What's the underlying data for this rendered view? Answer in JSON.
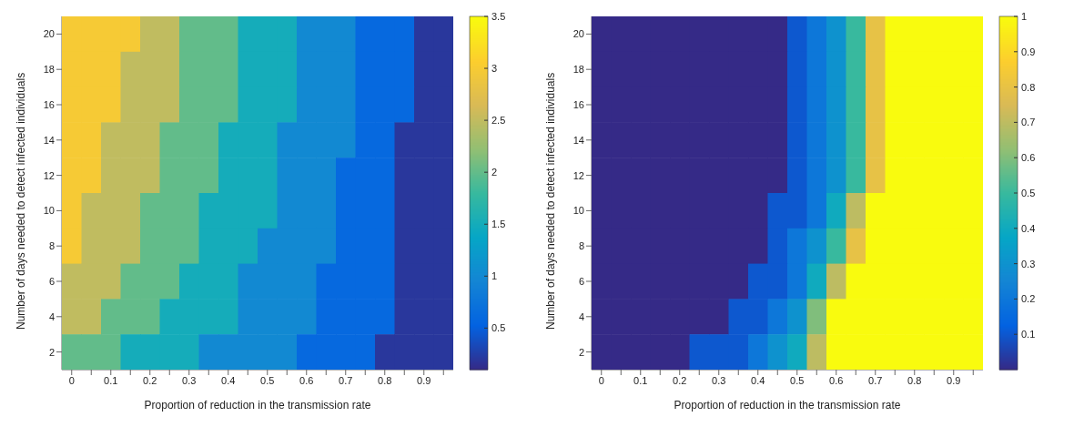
{
  "chart_data": [
    {
      "type": "heatmap",
      "xlabel": "Proportion of reduction in the transmission rate",
      "ylabel": "Number of days needed to detect infected individuals",
      "categories": [
        "0",
        null,
        "0.1",
        null,
        "0.2",
        null,
        "0.3",
        null,
        "0.4",
        null,
        "0.5",
        null,
        "0.6",
        null,
        "0.7",
        null,
        "0.8",
        null,
        "0.9",
        null
      ],
      "y_categories": [
        "20",
        "18",
        "16",
        "14",
        "12",
        "10",
        "8",
        "6",
        "4",
        "2"
      ],
      "clim": [
        0.1,
        3.5
      ],
      "cticks": [
        0.5,
        1,
        1.5,
        2,
        2.5,
        3,
        3.5
      ],
      "cells": [
        [
          3,
          3,
          3,
          3,
          2.5,
          2.5,
          2,
          2,
          2,
          1.5,
          1.5,
          1.5,
          1,
          1,
          1,
          0.6,
          0.6,
          0.6,
          0.2,
          0.2
        ],
        [
          3,
          3,
          3,
          2.5,
          2.5,
          2.5,
          2,
          2,
          2,
          1.5,
          1.5,
          1.5,
          1,
          1,
          1,
          0.6,
          0.6,
          0.6,
          0.2,
          0.2
        ],
        [
          3,
          3,
          3,
          2.5,
          2.5,
          2.5,
          2,
          2,
          2,
          1.5,
          1.5,
          1.5,
          1,
          1,
          1,
          0.6,
          0.6,
          0.6,
          0.2,
          0.2
        ],
        [
          3,
          3,
          2.5,
          2.5,
          2.5,
          2,
          2,
          2,
          1.5,
          1.5,
          1.5,
          1,
          1,
          1,
          1,
          0.6,
          0.6,
          0.2,
          0.2,
          0.2
        ],
        [
          3,
          3,
          2.5,
          2.5,
          2.5,
          2,
          2,
          2,
          1.5,
          1.5,
          1.5,
          1,
          1,
          1,
          0.6,
          0.6,
          0.6,
          0.2,
          0.2,
          0.2
        ],
        [
          3,
          2.5,
          2.5,
          2.5,
          2,
          2,
          2,
          1.5,
          1.5,
          1.5,
          1.5,
          1,
          1,
          1,
          0.6,
          0.6,
          0.6,
          0.2,
          0.2,
          0.2
        ],
        [
          3,
          2.5,
          2.5,
          2.5,
          2,
          2,
          2,
          1.5,
          1.5,
          1.5,
          1,
          1,
          1,
          1,
          0.6,
          0.6,
          0.6,
          0.2,
          0.2,
          0.2
        ],
        [
          2.5,
          2.5,
          2.5,
          2,
          2,
          2,
          1.5,
          1.5,
          1.5,
          1,
          1,
          1,
          1,
          0.6,
          0.6,
          0.6,
          0.6,
          0.2,
          0.2,
          0.2
        ],
        [
          2.5,
          2.5,
          2,
          2,
          2,
          1.5,
          1.5,
          1.5,
          1.5,
          1,
          1,
          1,
          1,
          0.6,
          0.6,
          0.6,
          0.6,
          0.2,
          0.2,
          0.2
        ],
        [
          2,
          2,
          2,
          1.5,
          1.5,
          1.5,
          1.5,
          1,
          1,
          1,
          1,
          1,
          0.6,
          0.6,
          0.6,
          0.6,
          0.2,
          0.2,
          0.2,
          0.2
        ]
      ]
    },
    {
      "type": "heatmap",
      "xlabel": "Proportion of reduction in the transmission rate",
      "ylabel": "Number of days needed to detect infected individuals",
      "categories": [
        "0",
        null,
        "0.1",
        null,
        "0.2",
        null,
        "0.3",
        null,
        "0.4",
        null,
        "0.5",
        null,
        "0.6",
        null,
        "0.7",
        null,
        "0.8",
        null,
        "0.9",
        null
      ],
      "y_categories": [
        "20",
        "18",
        "16",
        "14",
        "12",
        "10",
        "8",
        "6",
        "4",
        "2"
      ],
      "clim": [
        0,
        1
      ],
      "cticks": [
        0.1,
        0.2,
        0.3,
        0.4,
        0.5,
        0.6,
        0.7,
        0.8,
        0.9,
        1
      ],
      "cells": [
        [
          0,
          0,
          0,
          0,
          0,
          0,
          0,
          0,
          0,
          0,
          0.1,
          0.2,
          0.3,
          0.5,
          0.8,
          1,
          1,
          1,
          1,
          1
        ],
        [
          0,
          0,
          0,
          0,
          0,
          0,
          0,
          0,
          0,
          0,
          0.1,
          0.2,
          0.3,
          0.5,
          0.8,
          1,
          1,
          1,
          1,
          1
        ],
        [
          0,
          0,
          0,
          0,
          0,
          0,
          0,
          0,
          0,
          0,
          0.1,
          0.2,
          0.3,
          0.5,
          0.8,
          1,
          1,
          1,
          1,
          1
        ],
        [
          0,
          0,
          0,
          0,
          0,
          0,
          0,
          0,
          0,
          0,
          0.1,
          0.2,
          0.3,
          0.5,
          0.8,
          1,
          1,
          1,
          1,
          1
        ],
        [
          0,
          0,
          0,
          0,
          0,
          0,
          0,
          0,
          0,
          0,
          0.1,
          0.2,
          0.3,
          0.5,
          0.8,
          1,
          1,
          1,
          1,
          1
        ],
        [
          0,
          0,
          0,
          0,
          0,
          0,
          0,
          0,
          0,
          0.1,
          0.1,
          0.2,
          0.4,
          0.7,
          1,
          1,
          1,
          1,
          1,
          1
        ],
        [
          0,
          0,
          0,
          0,
          0,
          0,
          0,
          0,
          0,
          0.1,
          0.2,
          0.3,
          0.5,
          0.8,
          1,
          1,
          1,
          1,
          1,
          1
        ],
        [
          0,
          0,
          0,
          0,
          0,
          0,
          0,
          0,
          0.1,
          0.1,
          0.2,
          0.4,
          0.7,
          1,
          1,
          1,
          1,
          1,
          1,
          1
        ],
        [
          0,
          0,
          0,
          0,
          0,
          0,
          0,
          0.1,
          0.1,
          0.2,
          0.3,
          0.6,
          1,
          1,
          1,
          1,
          1,
          1,
          1,
          1
        ],
        [
          0,
          0,
          0,
          0,
          0,
          0.1,
          0.1,
          0.1,
          0.2,
          0.3,
          0.4,
          0.7,
          1,
          1,
          1,
          1,
          1,
          1,
          1,
          1
        ]
      ]
    }
  ]
}
